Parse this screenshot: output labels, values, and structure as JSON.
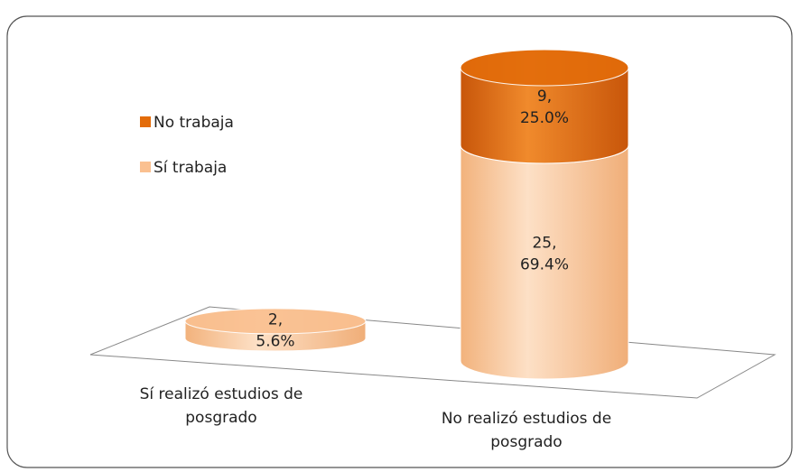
{
  "chart_data": {
    "type": "bar",
    "stacked": true,
    "categories": [
      "Sí realizó estudios de posgrado",
      "No realizó estudios de posgrado"
    ],
    "series": [
      {
        "name": "No trabaja",
        "color": "#e36c0a",
        "values": [
          null,
          9
        ],
        "value_labels": [
          null,
          "9, 25.0%"
        ]
      },
      {
        "name": "Sí trabaja",
        "color": "#fac090",
        "values": [
          2,
          25
        ],
        "value_labels": [
          "2, 5.6%",
          "25, 69.4%"
        ]
      }
    ]
  }
}
